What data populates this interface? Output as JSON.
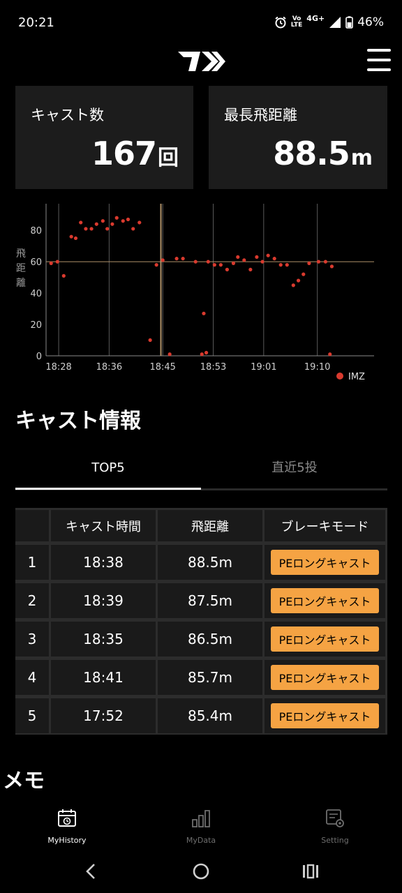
{
  "status_bar": {
    "time": "20:21",
    "network_top": "Vo",
    "network_bottom": "LTE",
    "signal_label": "4G+",
    "battery": "46%"
  },
  "stats": {
    "cast_count_label": "キャスト数",
    "cast_count_value": "167",
    "cast_count_unit": "回",
    "max_distance_label": "最長飛距離",
    "max_distance_value": "88.5",
    "max_distance_unit": "m"
  },
  "chart_data": {
    "type": "scatter",
    "ylabel": "飛距離",
    "yticks": [
      0,
      20,
      40,
      60,
      80
    ],
    "ylim": [
      0,
      97
    ],
    "x_tick_labels": [
      "18:28",
      "18:36",
      "18:45",
      "18:53",
      "19:01",
      "19:10"
    ],
    "xlim_minutes": [
      0,
      52
    ],
    "x_tick_minutes": [
      2,
      10,
      18.5,
      26.5,
      34.5,
      43
    ],
    "reference_line_y": 60,
    "highlight_x_minutes": 18.2,
    "series": [
      {
        "name": "IMZ",
        "color": "#d93a2e",
        "points": [
          [
            0.8,
            59
          ],
          [
            1.8,
            60
          ],
          [
            2.8,
            51
          ],
          [
            4.0,
            76
          ],
          [
            4.7,
            75
          ],
          [
            5.5,
            85
          ],
          [
            6.3,
            81
          ],
          [
            7.2,
            81
          ],
          [
            8.0,
            84
          ],
          [
            9.0,
            86
          ],
          [
            9.7,
            81
          ],
          [
            10.5,
            84
          ],
          [
            11.2,
            88
          ],
          [
            12.2,
            86
          ],
          [
            13.0,
            87
          ],
          [
            13.8,
            81
          ],
          [
            14.8,
            85
          ],
          [
            16.5,
            10
          ],
          [
            17.5,
            58
          ],
          [
            18.5,
            61
          ],
          [
            19.6,
            1
          ],
          [
            20.7,
            62
          ],
          [
            21.7,
            62
          ],
          [
            23.7,
            60
          ],
          [
            24.7,
            1
          ],
          [
            25.0,
            27
          ],
          [
            25.4,
            2
          ],
          [
            25.7,
            60
          ],
          [
            26.7,
            58
          ],
          [
            27.7,
            58
          ],
          [
            28.7,
            55
          ],
          [
            29.7,
            59
          ],
          [
            30.4,
            63
          ],
          [
            31.4,
            61
          ],
          [
            32.4,
            55
          ],
          [
            33.4,
            63
          ],
          [
            34.3,
            60
          ],
          [
            35.2,
            64
          ],
          [
            36.2,
            62
          ],
          [
            37.2,
            58
          ],
          [
            38.2,
            58
          ],
          [
            39.2,
            45
          ],
          [
            40.0,
            48
          ],
          [
            40.8,
            52
          ],
          [
            41.7,
            59
          ],
          [
            43.2,
            60
          ],
          [
            44.3,
            60
          ],
          [
            45.3,
            57
          ],
          [
            45.0,
            1
          ]
        ]
      }
    ],
    "legend": [
      "IMZ"
    ],
    "legend_position": "bottom-right"
  },
  "cast_info": {
    "title": "キャスト情報",
    "tabs": [
      {
        "label": "TOP5",
        "active": true
      },
      {
        "label": "直近5投",
        "active": false
      }
    ],
    "columns": [
      "",
      "キャスト時間",
      "飛距離",
      "ブレーキモード"
    ],
    "rows": [
      {
        "rank": "1",
        "time": "18:38",
        "distance": "88.5m",
        "mode": "PEロングキャスト"
      },
      {
        "rank": "2",
        "time": "18:39",
        "distance": "87.5m",
        "mode": "PEロングキャスト"
      },
      {
        "rank": "3",
        "time": "18:35",
        "distance": "86.5m",
        "mode": "PEロングキャスト"
      },
      {
        "rank": "4",
        "time": "18:41",
        "distance": "85.7m",
        "mode": "PEロングキャスト"
      },
      {
        "rank": "5",
        "time": "17:52",
        "distance": "85.4m",
        "mode": "PEロングキャスト"
      }
    ]
  },
  "memo": {
    "title": "メモ"
  },
  "bottom_nav": [
    {
      "label": "MyHistory",
      "icon": "calendar-history-icon",
      "active": true
    },
    {
      "label": "MyData",
      "icon": "bar-chart-icon",
      "active": false
    },
    {
      "label": "Setting",
      "icon": "settings-icon",
      "active": false
    }
  ],
  "colors": {
    "accent_badge": "#f5a343",
    "card_bg": "#1c1c1c",
    "point": "#d93a2e"
  }
}
